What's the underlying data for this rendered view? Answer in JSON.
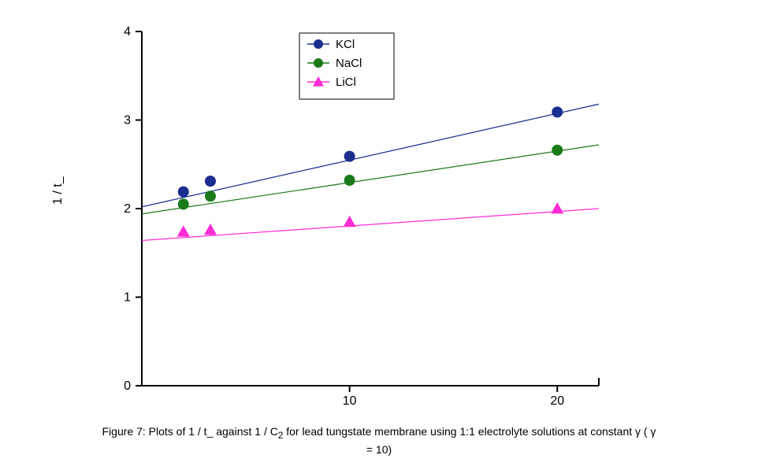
{
  "chart": {
    "type": "scatter",
    "background_color": "#ffffff",
    "axis_color": "#000000",
    "axis_width": 2,
    "tick_length": 8,
    "font_size_ticks": 16,
    "font_size_legend": 15,
    "font_size_ylabel": 16,
    "ylabel": "1 / t_",
    "x_ticks": [
      10,
      20
    ],
    "y_ticks": [
      0,
      1,
      2,
      3,
      4
    ],
    "xlim": [
      0,
      22
    ],
    "ylim": [
      0,
      4
    ],
    "series": [
      {
        "id": "kcl",
        "label": "KCl",
        "color": "#1b2d8f",
        "marker": "circle",
        "marker_size": 7,
        "x": [
          2,
          3.3,
          10,
          20
        ],
        "y": [
          2.19,
          2.31,
          2.59,
          3.09
        ],
        "line_x0": 0,
        "line_y0": 2.02,
        "line_x1": 22,
        "line_y1": 3.18
      },
      {
        "id": "nacl",
        "label": "NaCl",
        "color": "#1a7a1a",
        "marker": "circle",
        "marker_size": 7,
        "x": [
          2,
          3.3,
          10,
          20
        ],
        "y": [
          2.05,
          2.14,
          2.32,
          2.66
        ],
        "line_x0": 0,
        "line_y0": 1.94,
        "line_x1": 22,
        "line_y1": 2.72
      },
      {
        "id": "licl",
        "label": "LiCl",
        "color": "#ff2bd6",
        "marker": "triangle",
        "marker_size": 8,
        "x": [
          2,
          3.3,
          10,
          20
        ],
        "y": [
          1.74,
          1.76,
          1.85,
          2.0
        ],
        "line_x0": 0,
        "line_y0": 1.64,
        "line_x1": 22,
        "line_y1": 2.0
      }
    ],
    "legend": {
      "box_color": "#000000",
      "bg": "#ffffff"
    }
  },
  "caption": {
    "prefix": "Figure 7:  Plots of 1 / t_ against 1 / C",
    "sub": "2",
    "mid": " for lead tungstate membrane using 1:1 electrolyte solutions at constant  γ  ( γ",
    "tail": "= 10)"
  }
}
